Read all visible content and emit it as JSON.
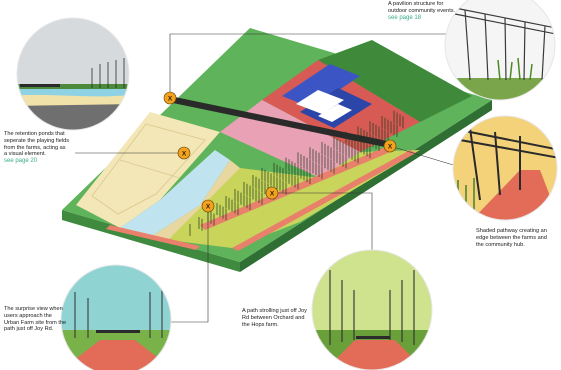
{
  "callouts": [
    {
      "id": "pavilion",
      "text": "A pavilion structure for outdoor community events.",
      "link": "see page 18"
    },
    {
      "id": "ponds",
      "text": "The retention ponds that seperate the playing fields from the farms, acting as a visual element.",
      "link": "see page 20"
    },
    {
      "id": "shaded",
      "text": "Shaded pathway creating an edge between the farms and the community hub.",
      "link": ""
    },
    {
      "id": "surprise",
      "text": "The surprise view when users approach the Urban Farm site from the path just off Joy Rd.",
      "link": ""
    },
    {
      "id": "stroll",
      "text": "A path strolling just off Joy Rd between Orchard and the Hops farm.",
      "link": ""
    }
  ],
  "marker_glyph": "X",
  "colors": {
    "grass": "#5fb35a",
    "grass_side": "#3f8a3f",
    "field": "#f3e7b8",
    "pond": "#bfe3ef",
    "path": "#e8806b",
    "building": "#3b56c4",
    "marker": "#f2a21e"
  }
}
